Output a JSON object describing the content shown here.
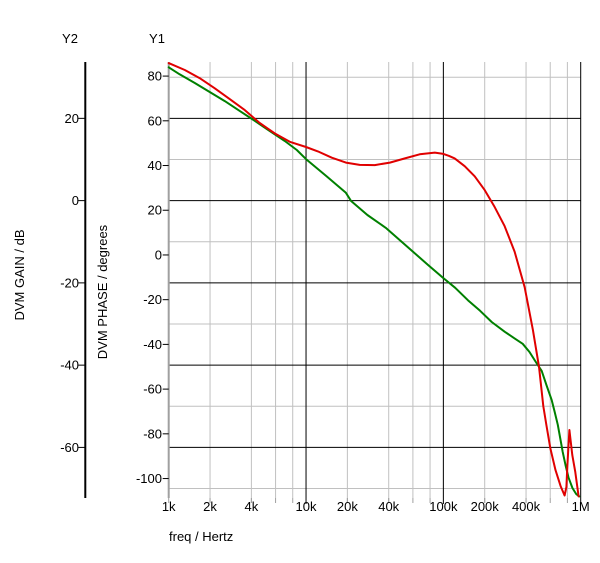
{
  "chart_data": {
    "type": "line",
    "title": "",
    "xlabel": "freq / Hertz",
    "grid": {
      "major_color": "#000000",
      "minor_color": "#c0c0c0",
      "axis_color": "#a0a0a0"
    },
    "x_axis": {
      "scale": "log",
      "min": 1000,
      "max": 1000000,
      "major_gridlines": [
        10000,
        100000,
        1000000
      ],
      "minor_ticks": [
        2000,
        4000,
        6000,
        8000,
        20000,
        40000,
        60000,
        80000,
        200000,
        400000,
        600000,
        800000
      ],
      "tick_labels": [
        {
          "value": 1000,
          "label": "1k"
        },
        {
          "value": 2000,
          "label": "2k"
        },
        {
          "value": 4000,
          "label": "4k"
        },
        {
          "value": 10000,
          "label": "10k"
        },
        {
          "value": 20000,
          "label": "20k"
        },
        {
          "value": 40000,
          "label": "40k"
        },
        {
          "value": 100000,
          "label": "100k"
        },
        {
          "value": 200000,
          "label": "200k"
        },
        {
          "value": 400000,
          "label": "400k"
        },
        {
          "value": 1000000,
          "label": "1M"
        }
      ]
    },
    "y1_axis": {
      "name": "Y1",
      "label": "DVM PHASE / degrees",
      "min": -108.7,
      "max": 86.3,
      "ticks": [
        80,
        60,
        40,
        20,
        0,
        -20,
        -40,
        -60,
        -80,
        -100
      ]
    },
    "y2_axis": {
      "name": "Y2",
      "label": "DVM GAIN / dB",
      "min": -72.3,
      "max": 33.7,
      "ticks": [
        20,
        0,
        -20,
        -40,
        -60
      ],
      "major_gridlines": [
        20,
        0,
        -20,
        -40,
        -60
      ],
      "minor_gridlines": [
        30,
        10,
        -10,
        -30,
        -50,
        -70
      ]
    },
    "series": [
      {
        "name": "DVM GAIN",
        "axis": "y2",
        "color": "#008000",
        "points": [
          [
            1000,
            32.4
          ],
          [
            1200,
            30.7
          ],
          [
            1550,
            28.6
          ],
          [
            1990,
            26.4
          ],
          [
            2560,
            24.2
          ],
          [
            3290,
            21.8
          ],
          [
            4230,
            19.4
          ],
          [
            5450,
            16.9
          ],
          [
            7000,
            14.5
          ],
          [
            8570,
            12.3
          ],
          [
            10000,
            10.1
          ],
          [
            14000,
            6.0
          ],
          [
            19500,
            1.9
          ],
          [
            21300,
            -0.1
          ],
          [
            28000,
            -3.5
          ],
          [
            38000,
            -6.6
          ],
          [
            56800,
            -11.7
          ],
          [
            77000,
            -15.6
          ],
          [
            99500,
            -18.8
          ],
          [
            122000,
            -21.2
          ],
          [
            151000,
            -24.2
          ],
          [
            185000,
            -26.8
          ],
          [
            225000,
            -29.5
          ],
          [
            280000,
            -31.9
          ],
          [
            330000,
            -33.5
          ],
          [
            378000,
            -34.8
          ],
          [
            424000,
            -36.8
          ],
          [
            466000,
            -39.0
          ],
          [
            520000,
            -41.4
          ],
          [
            563000,
            -44.8
          ],
          [
            615000,
            -48.5
          ],
          [
            647000,
            -51.4
          ],
          [
            681000,
            -54.5
          ],
          [
            740000,
            -61.1
          ],
          [
            777000,
            -64.5
          ],
          [
            816000,
            -67.4
          ],
          [
            871000,
            -69.9
          ],
          [
            926000,
            -71.3
          ],
          [
            977000,
            -71.9
          ]
        ]
      },
      {
        "name": "DVM PHASE",
        "axis": "y1",
        "color": "#e00000",
        "points": [
          [
            1000,
            85.8
          ],
          [
            1310,
            82.7
          ],
          [
            1680,
            79.1
          ],
          [
            2160,
            74.6
          ],
          [
            2780,
            69.7
          ],
          [
            3580,
            64.8
          ],
          [
            4600,
            59.0
          ],
          [
            5930,
            54.3
          ],
          [
            7620,
            50.6
          ],
          [
            10000,
            48.3
          ],
          [
            12200,
            46.3
          ],
          [
            15400,
            43.5
          ],
          [
            19500,
            41.3
          ],
          [
            24600,
            40.3
          ],
          [
            31700,
            40.2
          ],
          [
            40800,
            41.3
          ],
          [
            52500,
            43.2
          ],
          [
            67300,
            45.0
          ],
          [
            86600,
            45.8
          ],
          [
            100000,
            45.2
          ],
          [
            110000,
            44.3
          ],
          [
            121000,
            43.2
          ],
          [
            143000,
            39.7
          ],
          [
            169000,
            35.2
          ],
          [
            200000,
            29.0
          ],
          [
            236000,
            21.5
          ],
          [
            279000,
            12.9
          ],
          [
            330000,
            1.5
          ],
          [
            391000,
            -14.5
          ],
          [
            449000,
            -33.5
          ],
          [
            497000,
            -50.0
          ],
          [
            534000,
            -67.6
          ],
          [
            563000,
            -76.1
          ],
          [
            601000,
            -86.4
          ],
          [
            655000,
            -96.2
          ],
          [
            714000,
            -103.4
          ],
          [
            763000,
            -107.6
          ],
          [
            787000,
            -103.8
          ],
          [
            800000,
            -94.0
          ],
          [
            827000,
            -78.3
          ],
          [
            869000,
            -89.5
          ],
          [
            913000,
            -97.1
          ],
          [
            943000,
            -103.4
          ],
          [
            966000,
            -108.0
          ]
        ]
      }
    ]
  }
}
